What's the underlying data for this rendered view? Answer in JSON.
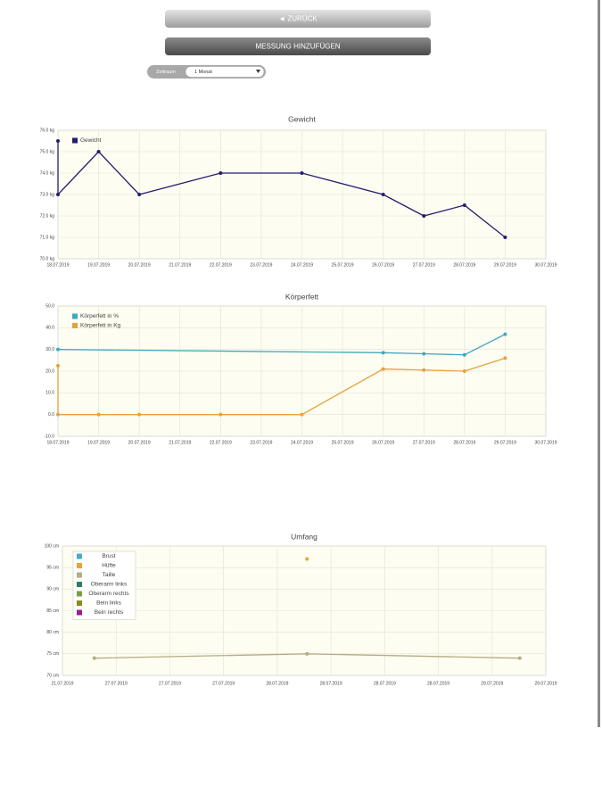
{
  "buttons": {
    "back": "◄ ZURÜCK",
    "add": "MESSUNG HINZUFÜGEN"
  },
  "filter": {
    "label": "Zeitraum",
    "value": "1 Monat"
  },
  "chart_data": [
    {
      "type": "line",
      "title": "Gewicht",
      "x": [
        "18.07.2019",
        "18.07.2019",
        "19.07.2019",
        "20.07.2019",
        "22.07.2019",
        "24.07.2019",
        "26.07.2019",
        "27.07.2019",
        "28.07.2019",
        "29.07.2019"
      ],
      "xlim": [
        "18.07.2019",
        "30.07.2019"
      ],
      "xticks": [
        "18.07.2019",
        "19.07.2019",
        "20.07.2019",
        "21.07.2019",
        "22.07.2019",
        "23.07.2019",
        "24.07.2019",
        "25.07.2019",
        "26.07.2019",
        "27.07.2019",
        "28.07.2019",
        "29.07.2019",
        "30.07.2019"
      ],
      "ylim": [
        70,
        76
      ],
      "yticks": [
        {
          "value": 70,
          "label": "70.0 kg"
        },
        {
          "value": 71,
          "label": "71.0 kg"
        },
        {
          "value": 72,
          "label": "72.0 kg"
        },
        {
          "value": 73,
          "label": "73.0 kg"
        },
        {
          "value": 74,
          "label": "74.0 kg"
        },
        {
          "value": 75,
          "label": "75.0 kg"
        },
        {
          "value": 76,
          "label": "76.0 kg"
        }
      ],
      "grid": true,
      "legend": "upper left",
      "series": [
        {
          "name": "Gewicht",
          "color": "#231f6e",
          "values": [
            75.5,
            73,
            75,
            73,
            74,
            74,
            73,
            72,
            72.5,
            71
          ]
        }
      ]
    },
    {
      "type": "line",
      "title": "Körperfett",
      "xlim": [
        "18.07.2019",
        "30.07.2019"
      ],
      "xticks": [
        "18.07.2019",
        "19.07.2019",
        "20.07.2019",
        "21.07.2019",
        "22.07.2019",
        "23.07.2019",
        "24.07.2019",
        "25.07.2019",
        "26.07.2019",
        "27.07.2019",
        "28.07.2019",
        "29.07.2019",
        "30.07.2019"
      ],
      "ylim": [
        -10,
        50
      ],
      "yticks": [
        {
          "value": -10,
          "label": "-10.0"
        },
        {
          "value": 0,
          "label": "0.0"
        },
        {
          "value": 10,
          "label": "10.0"
        },
        {
          "value": 20,
          "label": "20.0"
        },
        {
          "value": 30,
          "label": "30.0"
        },
        {
          "value": 40,
          "label": "40.0"
        },
        {
          "value": 50,
          "label": "50.0"
        }
      ],
      "grid": true,
      "legend": "upper left",
      "series": [
        {
          "name": "Körperfett in %",
          "color": "#3fa9be",
          "x": [
            "18.07.2019",
            "26.07.2019",
            "27.07.2019",
            "28.07.2019",
            "29.07.2019"
          ],
          "values": [
            30,
            28.5,
            28,
            27.5,
            37
          ]
        },
        {
          "name": "Körperfett in Kg",
          "color": "#e6a23c",
          "x": [
            "18.07.2019",
            "18.07.2019",
            "19.07.2019",
            "20.07.2019",
            "22.07.2019",
            "24.07.2019",
            "26.07.2019",
            "27.07.2019",
            "28.07.2019",
            "29.07.2019"
          ],
          "values": [
            22.5,
            0,
            0,
            0,
            0,
            0,
            21,
            20.5,
            20,
            26
          ]
        }
      ]
    },
    {
      "type": "line",
      "title": "Umfang",
      "categories": [
        "27.07.2019",
        "28.07.2019",
        "29.07.2019"
      ],
      "xticks": [
        "21.07.2019",
        "27.07.2019",
        "27.07.2019",
        "27.07.2019",
        "28.07.2019",
        "28.07.2019",
        "28.07.2019",
        "28.07.2019",
        "29.07.2019",
        "29.07.2019"
      ],
      "ylim": [
        70,
        100
      ],
      "yticks": [
        {
          "value": 70,
          "label": "70 cm"
        },
        {
          "value": 75,
          "label": "75 cm"
        },
        {
          "value": 80,
          "label": "80 cm"
        },
        {
          "value": 85,
          "label": "85 cm"
        },
        {
          "value": 90,
          "label": "90 cm"
        },
        {
          "value": 95,
          "label": "95 cm"
        },
        {
          "value": 100,
          "label": "100 cm"
        }
      ],
      "grid": true,
      "legend": "upper left",
      "series": [
        {
          "name": "Brust",
          "color": "#4bacc6",
          "values": [
            null,
            null,
            null
          ]
        },
        {
          "name": "Hüfte",
          "color": "#f0a030",
          "values": [
            null,
            97,
            null
          ]
        },
        {
          "name": "Taille",
          "color": "#b3ad82",
          "values": [
            74,
            75,
            74
          ]
        },
        {
          "name": "Oberarm links",
          "color": "#2e7d5b",
          "values": [
            null,
            null,
            null
          ]
        },
        {
          "name": "Oberarm rechts",
          "color": "#7a9e3e",
          "values": [
            null,
            null,
            null
          ]
        },
        {
          "name": "Bein links",
          "color": "#8c8c1a",
          "values": [
            null,
            null,
            null
          ]
        },
        {
          "name": "Bein rechts",
          "color": "#9b1e8c",
          "values": [
            null,
            null,
            null
          ]
        }
      ]
    }
  ]
}
